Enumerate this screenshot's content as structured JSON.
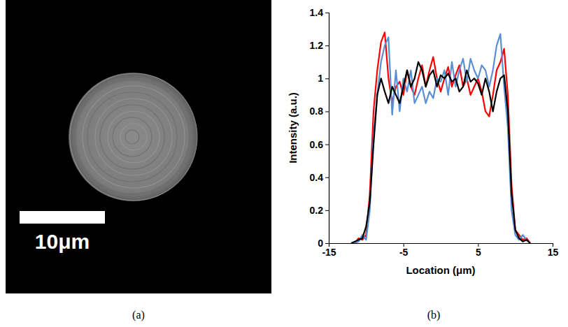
{
  "image_panel": {
    "caption": "(a)",
    "scale_bar": {
      "value": 10,
      "label": "10μm"
    }
  },
  "chart_data": {
    "type": "line",
    "caption": "(b)",
    "x_label": "Location (μm)",
    "y_label": "Intensity (a.u.)",
    "x": [
      -12,
      -11.5,
      -11,
      -10.5,
      -10,
      -9.5,
      -9,
      -8.5,
      -8,
      -7.5,
      -7,
      -6.5,
      -6,
      -5.5,
      -5,
      -4.5,
      -4,
      -3.5,
      -3,
      -2.5,
      -2,
      -1.5,
      -1,
      -0.5,
      0,
      0.5,
      1,
      1.5,
      2,
      2.5,
      3,
      3.5,
      4,
      4.5,
      5,
      5.5,
      6,
      6.5,
      7,
      7.5,
      8,
      8.5,
      9,
      9.5,
      10,
      10.5,
      11,
      11.5,
      12
    ],
    "xlim": [
      -15,
      15
    ],
    "xticks": [
      -15,
      -5,
      5,
      15
    ],
    "ylim": [
      0,
      1.4
    ],
    "yticks": [
      0,
      0.2,
      0.4,
      0.6,
      0.8,
      1,
      1.2,
      1.4
    ],
    "series": [
      {
        "color": "#ff0000",
        "values": [
          0,
          0,
          0.03,
          0.02,
          0.05,
          0.3,
          0.8,
          1.05,
          1.22,
          1.28,
          1.0,
          0.85,
          0.95,
          0.98,
          0.9,
          1.05,
          0.95,
          0.9,
          1.0,
          1.08,
          0.95,
          1.05,
          1.13,
          1.0,
          0.92,
          1.0,
          1.07,
          0.95,
          1.02,
          1.08,
          0.95,
          1.0,
          0.9,
          0.95,
          1.0,
          0.92,
          0.8,
          0.77,
          0.9,
          1.05,
          1.1,
          1.18,
          0.9,
          0.35,
          0.08,
          0.05,
          0.02,
          0.03,
          0
        ]
      },
      {
        "color": "#5b8fd4",
        "values": [
          0,
          0,
          0.01,
          0.05,
          0.02,
          0.2,
          0.65,
          0.9,
          1.1,
          1.2,
          1.25,
          0.78,
          1.05,
          0.8,
          1.0,
          0.92,
          1.05,
          0.85,
          0.9,
          0.95,
          0.85,
          0.92,
          0.88,
          1.0,
          0.98,
          1.05,
          0.9,
          1.1,
          0.95,
          1.05,
          1.12,
          0.98,
          1.12,
          1.05,
          1.0,
          1.08,
          1.05,
          0.95,
          1.05,
          1.2,
          1.27,
          0.95,
          0.7,
          0.2,
          0.05,
          0.02,
          0.05,
          0.02,
          0
        ]
      },
      {
        "color": "#000000",
        "values": [
          0,
          0.01,
          0.02,
          0.03,
          0.1,
          0.25,
          0.6,
          0.9,
          1.0,
          0.92,
          0.85,
          0.95,
          0.9,
          0.85,
          0.95,
          1.05,
          0.95,
          1.0,
          1.1,
          1.05,
          0.95,
          1.02,
          1.05,
          0.95,
          1.02,
          1.0,
          1.03,
          0.98,
          1.0,
          0.92,
          0.95,
          1.05,
          0.98,
          1.0,
          0.97,
          0.9,
          1.0,
          0.92,
          0.8,
          0.92,
          1.0,
          1.02,
          0.8,
          0.3,
          0.08,
          0.03,
          0.01,
          0.02,
          0
        ]
      }
    ]
  }
}
